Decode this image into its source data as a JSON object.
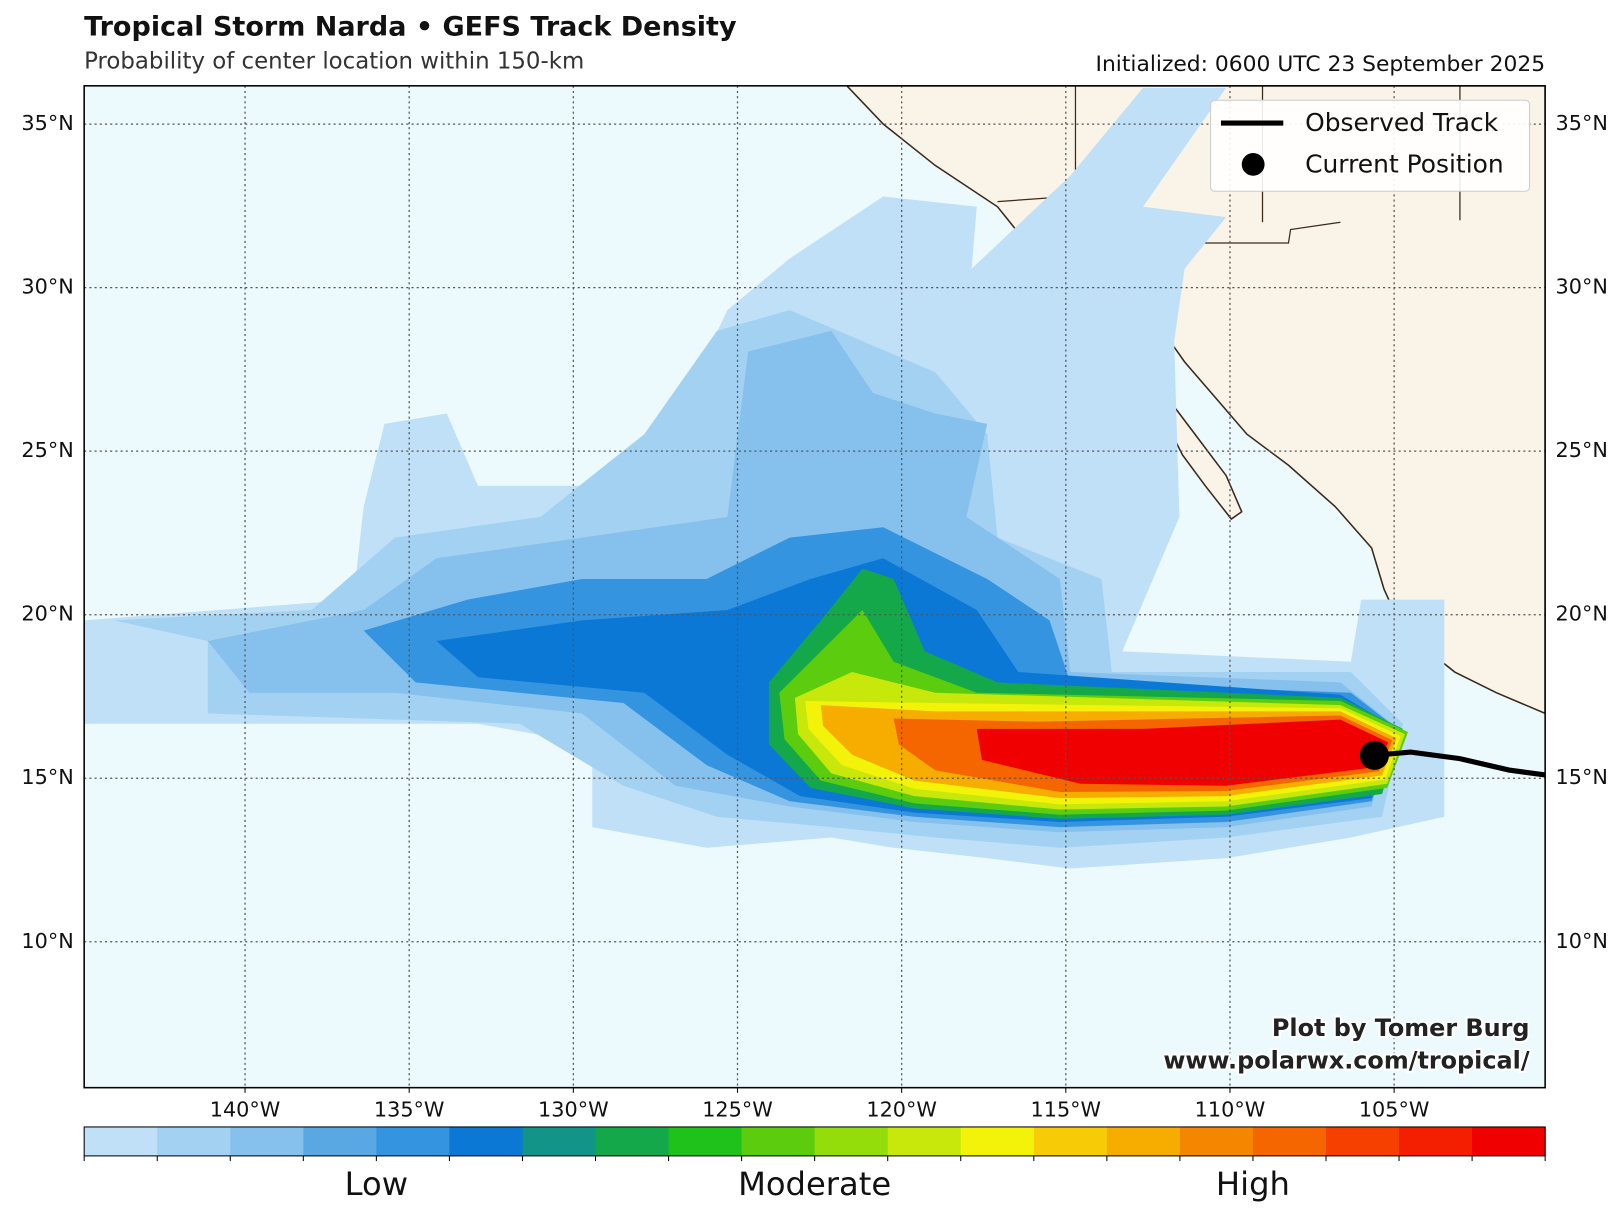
{
  "map": {
    "title": "Tropical Storm Narda • GEFS Track Density",
    "subtitle": "Probability of center location within 150-km",
    "initialized": "Initialized: 0600 UTC 23 September 2025",
    "xlim": [
      -144.9,
      -100.4
    ],
    "ylim": [
      5.54,
      36.17
    ],
    "xticks": [
      {
        "value": -140,
        "label": "140°W"
      },
      {
        "value": -135,
        "label": "135°W"
      },
      {
        "value": -130,
        "label": "130°W"
      },
      {
        "value": -125,
        "label": "125°W"
      },
      {
        "value": -120,
        "label": "120°W"
      },
      {
        "value": -115,
        "label": "115°W"
      },
      {
        "value": -110,
        "label": "110°W"
      },
      {
        "value": -105,
        "label": "105°W"
      }
    ],
    "yticks": [
      {
        "value": 10,
        "label": "10°N"
      },
      {
        "value": 15,
        "label": "15°N"
      },
      {
        "value": 20,
        "label": "20°N"
      },
      {
        "value": 25,
        "label": "25°N"
      },
      {
        "value": 30,
        "label": "30°N"
      },
      {
        "value": 35,
        "label": "35°N"
      }
    ],
    "legend": [
      "Observed Track",
      "Current Position"
    ],
    "observed_track": {
      "lon": [
        -105.6,
        -104.5,
        -103,
        -101.5,
        -100.4
      ],
      "lat": [
        15.7,
        15.8,
        15.6,
        15.25,
        15.1
      ]
    },
    "current_position": {
      "lon": -105.6,
      "lat": 15.7
    },
    "colorbar": {
      "colors": [
        "#bfe0f7",
        "#a3d1f2",
        "#86c0ed",
        "#5aa8e3",
        "#3494e0",
        "#0b78d6",
        "#139488",
        "#14a84a",
        "#1ec21b",
        "#5ccc0e",
        "#94dc0a",
        "#c7e80a",
        "#f3f30a",
        "#f7cc06",
        "#f6ad00",
        "#f58700",
        "#f56500",
        "#f54000",
        "#f41f00",
        "#f00000"
      ],
      "labels": [
        "Low",
        "Moderate",
        "High"
      ]
    },
    "credit": [
      "Plot by Tomer Burg",
      "www.polarwx.com/tropical/"
    ]
  }
}
